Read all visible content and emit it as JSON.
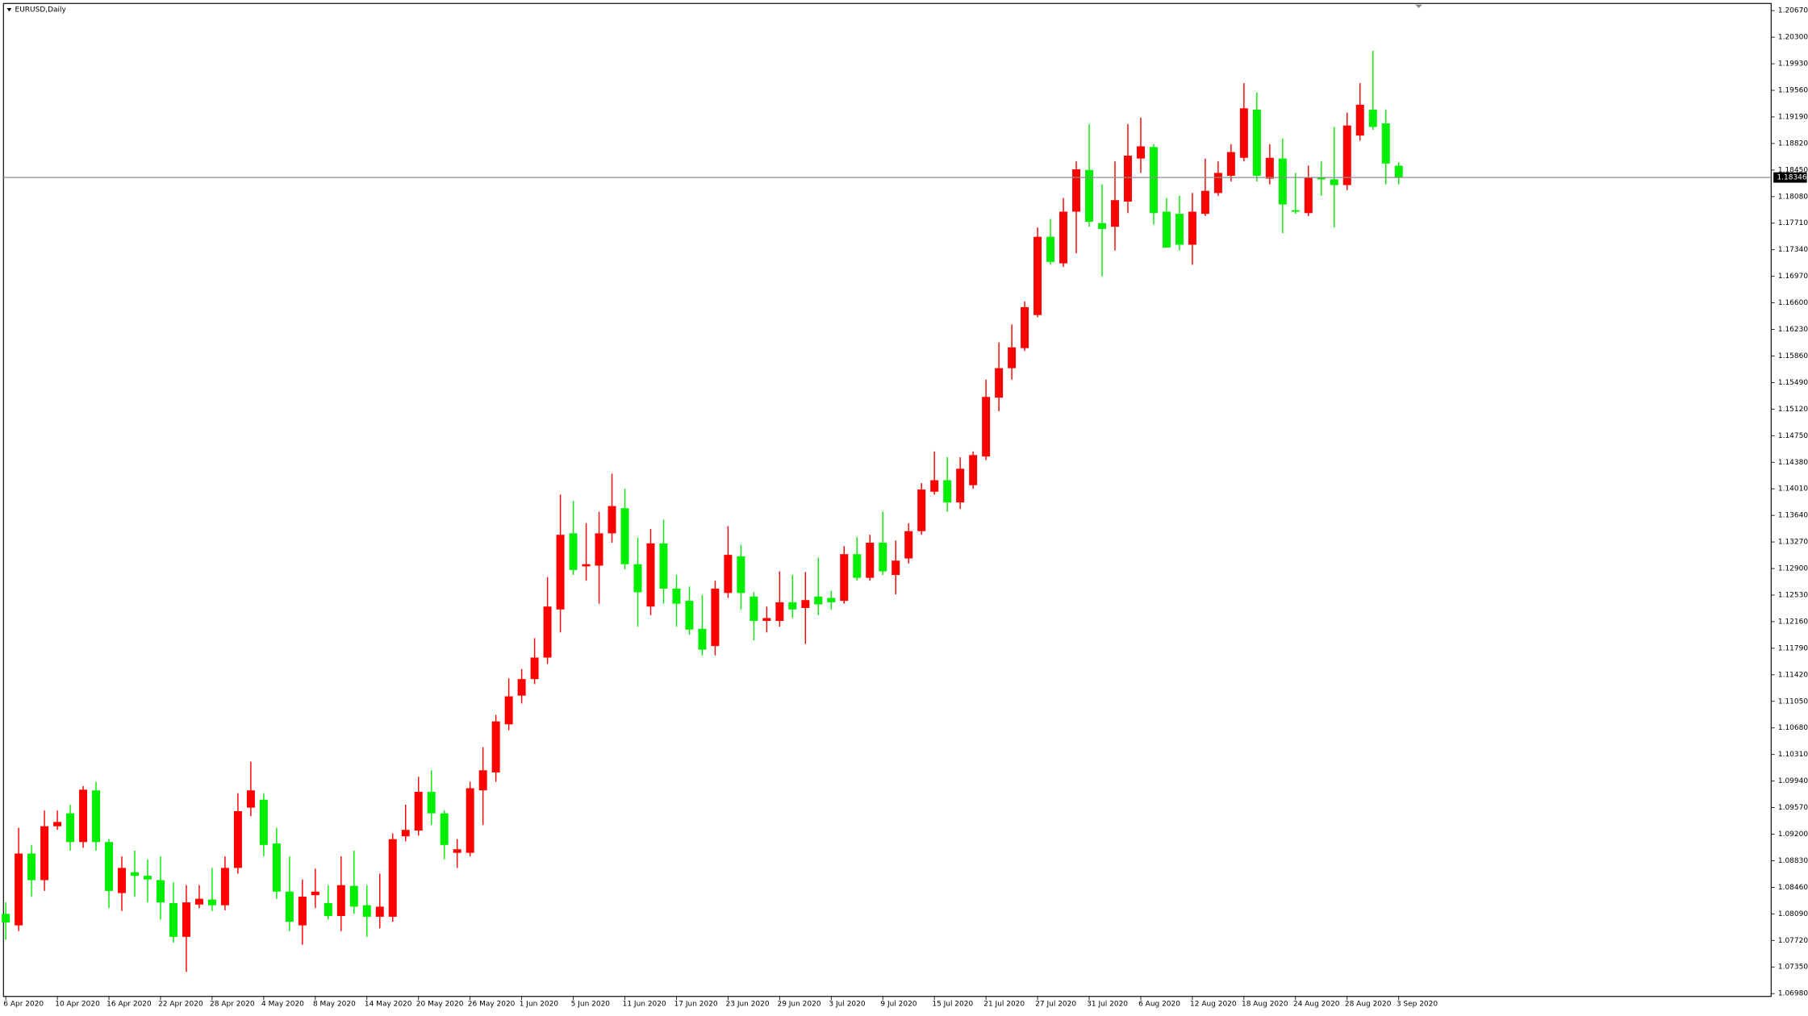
{
  "chart_data": {
    "type": "candlestick",
    "title": "EURUSD,Daily",
    "categories": [
      "6 Apr 2020",
      null,
      null,
      null,
      "10 Apr 2020",
      null,
      null,
      null,
      "16 Apr 2020",
      null,
      null,
      null,
      "22 Apr 2020",
      null,
      null,
      null,
      "28 Apr 2020",
      null,
      null,
      null,
      "4 May 2020",
      null,
      null,
      null,
      "8 May 2020",
      null,
      null,
      null,
      "14 May 2020",
      null,
      null,
      null,
      "20 May 2020",
      null,
      null,
      null,
      "26 May 2020",
      null,
      null,
      null,
      "1 Jun 2020",
      null,
      null,
      null,
      "5 Jun 2020",
      null,
      null,
      null,
      "11 Jun 2020",
      null,
      null,
      null,
      "17 Jun 2020",
      null,
      null,
      null,
      "23 Jun 2020",
      null,
      null,
      null,
      "29 Jun 2020",
      null,
      null,
      null,
      "3 Jul 2020",
      null,
      null,
      null,
      "9 Jul 2020",
      null,
      null,
      null,
      "15 Jul 2020",
      null,
      null,
      null,
      "21 Jul 2020",
      null,
      null,
      null,
      "27 Jul 2020",
      null,
      null,
      null,
      "31 Jul 2020",
      null,
      null,
      null,
      "6 Aug 2020",
      null,
      null,
      null,
      "12 Aug 2020",
      null,
      null,
      null,
      "18 Aug 2020",
      null,
      null,
      null,
      "24 Aug 2020",
      null,
      null,
      null,
      "28 Aug 2020",
      null,
      null,
      null,
      "3 Sep 2020"
    ],
    "open": [
      1.0809,
      1.0793,
      1.0893,
      1.0856,
      1.0931,
      1.0949,
      1.0909,
      1.0981,
      1.0909,
      1.0838,
      1.0867,
      1.0862,
      1.0856,
      1.0824,
      1.0777,
      1.0822,
      1.0829,
      1.0821,
      1.0873,
      1.0957,
      1.0968,
      1.0907,
      1.084,
      1.0793,
      1.0835,
      1.0824,
      1.0806,
      1.0848,
      1.0821,
      1.0805,
      1.0805,
      1.0917,
      1.0925,
      1.0979,
      1.0949,
      1.0894,
      1.0894,
      1.0981,
      1.1006,
      1.1073,
      1.1113,
      1.1136,
      1.1166,
      1.1233,
      1.1339,
      1.1293,
      1.1294,
      1.1339,
      1.1374,
      1.1296,
      1.1237,
      1.1325,
      1.1262,
      1.1245,
      1.1206,
      1.1182,
      1.1256,
      1.1307,
      1.1251,
      1.1217,
      1.1217,
      1.1243,
      1.1235,
      1.1251,
      1.1249,
      1.1245,
      1.131,
      1.1277,
      1.1326,
      1.1281,
      1.1304,
      1.1342,
      1.1397,
      1.1413,
      1.1382,
      1.1406,
      1.1446,
      1.1528,
      1.1569,
      1.1597,
      1.1643,
      1.1752,
      1.1715,
      1.1787,
      1.1845,
      1.1771,
      1.1766,
      1.1801,
      1.1861,
      1.1877,
      1.1787,
      1.1784,
      1.1741,
      1.1784,
      1.1813,
      1.1837,
      1.1862,
      1.1929,
      1.1833,
      1.1861,
      1.1789,
      1.1785,
      1.1835,
      1.1832,
      1.1824,
      1.1893,
      1.1929,
      1.191,
      1.1851
    ],
    "high": [
      1.0825,
      1.0929,
      1.0905,
      1.0953,
      1.0953,
      1.0961,
      1.0987,
      1.0993,
      1.0913,
      1.0889,
      1.0897,
      1.0885,
      1.0889,
      1.0853,
      1.0849,
      1.0849,
      1.0873,
      1.0889,
      1.0977,
      1.1021,
      1.0977,
      1.0929,
      1.0889,
      1.0857,
      1.0872,
      1.0849,
      1.0889,
      1.0897,
      1.0849,
      1.0865,
      1.0921,
      1.0961,
      1.1,
      1.1009,
      1.0953,
      1.0913,
      1.0993,
      1.1041,
      1.1086,
      1.1137,
      1.115,
      1.1193,
      1.1278,
      1.1393,
      1.1384,
      1.1353,
      1.1369,
      1.1422,
      1.1401,
      1.1333,
      1.1345,
      1.1358,
      1.1281,
      1.1265,
      1.1253,
      1.1273,
      1.1349,
      1.1323,
      1.1257,
      1.1237,
      1.1286,
      1.1281,
      1.1285,
      1.1305,
      1.1259,
      1.1321,
      1.1334,
      1.1337,
      1.1369,
      1.1329,
      1.1353,
      1.1409,
      1.1453,
      1.1445,
      1.1445,
      1.1453,
      1.1553,
      1.1605,
      1.163,
      1.1662,
      1.1765,
      1.1777,
      1.1806,
      1.1857,
      1.1909,
      1.1825,
      1.1857,
      1.1909,
      1.1918,
      1.1881,
      1.1806,
      1.1809,
      1.1813,
      1.1861,
      1.1857,
      1.1881,
      1.1966,
      1.1953,
      1.1881,
      1.1889,
      1.1841,
      1.1851,
      1.1857,
      1.1905,
      1.1925,
      1.1966,
      1.2011,
      1.1929,
      1.1856
    ],
    "low": [
      1.0773,
      1.0785,
      1.0833,
      1.0841,
      1.0926,
      1.0897,
      1.0901,
      1.0897,
      1.0817,
      1.0813,
      1.0833,
      1.0825,
      1.0801,
      1.0769,
      1.0728,
      1.0817,
      1.0813,
      1.0814,
      1.0865,
      1.0945,
      1.0889,
      1.083,
      1.0785,
      1.0766,
      1.0817,
      1.0801,
      1.0785,
      1.0809,
      1.0777,
      1.0789,
      1.0798,
      1.091,
      1.0918,
      1.0933,
      1.0885,
      1.0873,
      1.0889,
      1.0933,
      1.0993,
      1.1065,
      1.1102,
      1.1129,
      1.1157,
      1.1201,
      1.1281,
      1.1273,
      1.1241,
      1.1326,
      1.1289,
      1.1209,
      1.1225,
      1.1241,
      1.1209,
      1.1198,
      1.1169,
      1.1169,
      1.1249,
      1.1233,
      1.119,
      1.1201,
      1.1209,
      1.1221,
      1.1185,
      1.1225,
      1.1233,
      1.1241,
      1.1273,
      1.1273,
      1.1281,
      1.1254,
      1.1297,
      1.1337,
      1.1393,
      1.1369,
      1.1373,
      1.1401,
      1.1441,
      1.1509,
      1.1553,
      1.1593,
      1.164,
      1.1713,
      1.171,
      1.1729,
      1.1766,
      1.1697,
      1.1733,
      1.1785,
      1.1841,
      1.1769,
      1.1737,
      1.1733,
      1.1713,
      1.1781,
      1.1809,
      1.1829,
      1.1857,
      1.1829,
      1.1825,
      1.1757,
      1.1784,
      1.1781,
      1.1809,
      1.1765,
      1.1817,
      1.1886,
      1.1901,
      1.1825,
      1.1825
    ],
    "close": [
      1.0797,
      1.0893,
      1.0856,
      1.0931,
      1.0937,
      1.0909,
      1.0982,
      1.0909,
      1.0841,
      1.0873,
      1.0862,
      1.0857,
      1.0825,
      1.0777,
      1.0825,
      1.083,
      1.0821,
      1.0873,
      1.0952,
      1.0981,
      1.0905,
      1.084,
      1.0798,
      1.0833,
      1.084,
      1.0806,
      1.0849,
      1.0819,
      1.0805,
      1.0819,
      1.0913,
      1.0926,
      1.0979,
      1.0949,
      1.0905,
      1.0899,
      1.0984,
      1.1009,
      1.1077,
      1.1112,
      1.1136,
      1.1166,
      1.1237,
      1.1337,
      1.1288,
      1.1296,
      1.1339,
      1.1377,
      1.1296,
      1.1257,
      1.1325,
      1.1262,
      1.1241,
      1.1205,
      1.1177,
      1.1262,
      1.1309,
      1.1256,
      1.1217,
      1.1221,
      1.1243,
      1.1233,
      1.1246,
      1.124,
      1.1243,
      1.131,
      1.1277,
      1.1326,
      1.1286,
      1.1301,
      1.1342,
      1.14,
      1.1413,
      1.1382,
      1.1429,
      1.1448,
      1.1529,
      1.1569,
      1.1598,
      1.1654,
      1.1752,
      1.1717,
      1.1787,
      1.1846,
      1.1773,
      1.1763,
      1.1803,
      1.1865,
      1.1878,
      1.1785,
      1.1737,
      1.1741,
      1.1787,
      1.1816,
      1.1841,
      1.187,
      1.1931,
      1.1837,
      1.1862,
      1.1797,
      1.1787,
      1.1835,
      1.1832,
      1.1824,
      1.1907,
      1.1936,
      1.1905,
      1.1854,
      1.18346
    ],
    "up_color": "#ff0000",
    "down_color": "#00ee00",
    "last_price": 1.18346,
    "ylim": [
      1.0694,
      1.2077
    ],
    "yticks": [
      {
        "value": 1.0698,
        "label": "1.06980"
      },
      {
        "value": 1.0735,
        "label": "1.07350"
      },
      {
        "value": 1.0772,
        "label": "1.07720"
      },
      {
        "value": 1.0809,
        "label": "1.08090"
      },
      {
        "value": 1.0846,
        "label": "1.08460"
      },
      {
        "value": 1.0883,
        "label": "1.08830"
      },
      {
        "value": 1.092,
        "label": "1.09200"
      },
      {
        "value": 1.0957,
        "label": "1.09570"
      },
      {
        "value": 1.0994,
        "label": "1.09940"
      },
      {
        "value": 1.1031,
        "label": "1.10310"
      },
      {
        "value": 1.1068,
        "label": "1.10680"
      },
      {
        "value": 1.1105,
        "label": "1.11050"
      },
      {
        "value": 1.1142,
        "label": "1.11420"
      },
      {
        "value": 1.1179,
        "label": "1.11790"
      },
      {
        "value": 1.1216,
        "label": "1.12160"
      },
      {
        "value": 1.1253,
        "label": "1.12530"
      },
      {
        "value": 1.129,
        "label": "1.12900"
      },
      {
        "value": 1.1327,
        "label": "1.13270"
      },
      {
        "value": 1.1364,
        "label": "1.13640"
      },
      {
        "value": 1.1401,
        "label": "1.14010"
      },
      {
        "value": 1.1438,
        "label": "1.14380"
      },
      {
        "value": 1.1475,
        "label": "1.14750"
      },
      {
        "value": 1.1512,
        "label": "1.15120"
      },
      {
        "value": 1.1549,
        "label": "1.15490"
      },
      {
        "value": 1.1586,
        "label": "1.15860"
      },
      {
        "value": 1.1623,
        "label": "1.16230"
      },
      {
        "value": 1.166,
        "label": "1.16600"
      },
      {
        "value": 1.1697,
        "label": "1.16970"
      },
      {
        "value": 1.1734,
        "label": "1.17340"
      },
      {
        "value": 1.1771,
        "label": "1.17710"
      },
      {
        "value": 1.1808,
        "label": "1.18080"
      },
      {
        "value": 1.1845,
        "label": "1.18450"
      },
      {
        "value": 1.1882,
        "label": "1.18820"
      },
      {
        "value": 1.1919,
        "label": "1.19190"
      },
      {
        "value": 1.1956,
        "label": "1.19560"
      },
      {
        "value": 1.1993,
        "label": "1.19930"
      },
      {
        "value": 1.203,
        "label": "1.20300"
      },
      {
        "value": 1.2067,
        "label": "1.20670"
      }
    ],
    "grid": false
  }
}
